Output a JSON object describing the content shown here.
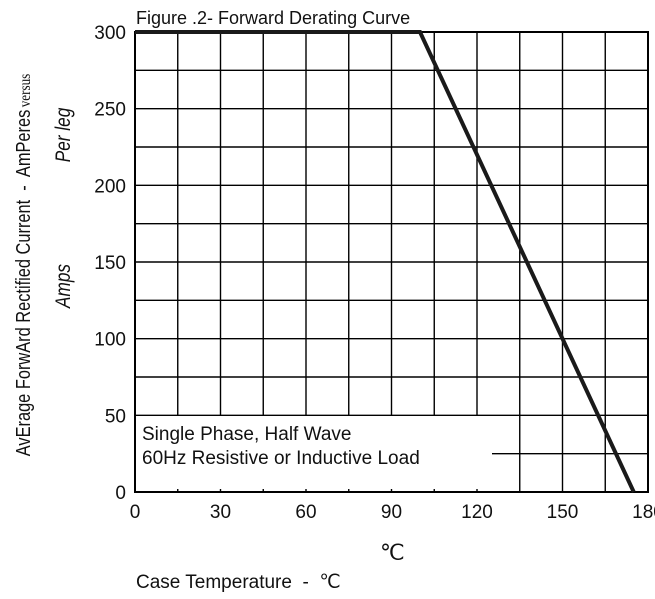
{
  "chart_data": {
    "type": "line",
    "title": "Figure .2- Forward Derating Curve",
    "xlabel": "Case Temperature  -  ℃",
    "ylabel": "AvErage ForwArd Rectified Current  -  AmPeres",
    "ylabel_suffix": "versus",
    "ylabel_per_leg": "Per leg",
    "ylabel_amps": "Amps",
    "x_unit_mark": "℃",
    "xlim": [
      0,
      180
    ],
    "ylim": [
      0,
      300
    ],
    "x_ticks": [
      0,
      30,
      60,
      90,
      120,
      150,
      180
    ],
    "y_ticks": [
      0,
      50,
      100,
      150,
      200,
      250,
      300
    ],
    "x_minor_step": 15,
    "y_minor_step": 25,
    "grid": true,
    "annotation": [
      "Single Phase, Half Wave",
      "60Hz Resistive or Inductive Load"
    ],
    "series": [
      {
        "x": [
          0,
          100,
          175
        ],
        "y": [
          300,
          300,
          0
        ]
      }
    ]
  }
}
